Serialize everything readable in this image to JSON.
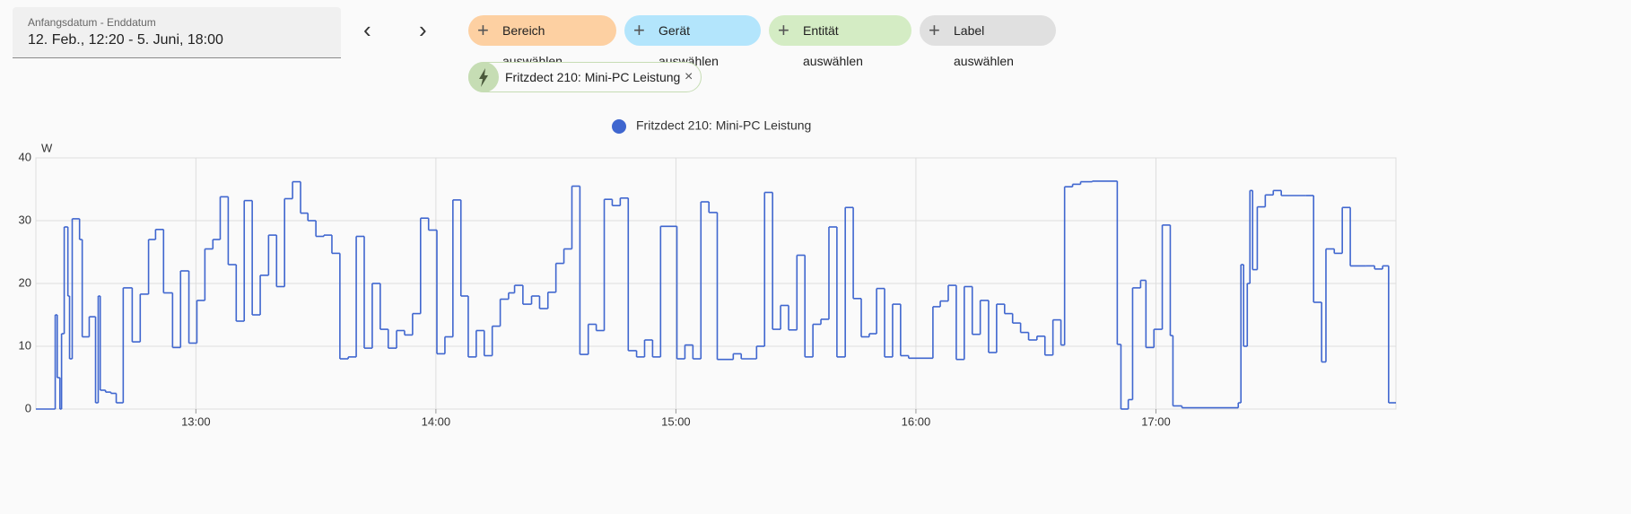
{
  "header": {
    "date_label": "Anfangsdatum - Enddatum",
    "date_value": "12. Feb., 12:20 - 5. Juni, 18:00",
    "buttons": [
      "Bereich auswählen",
      "Gerät auswählen",
      "Entität auswählen",
      "Label auswählen"
    ],
    "entity_chip": "Fritzdect 210: Mini-PC Leistung"
  },
  "chart_data": {
    "type": "line",
    "step": true,
    "y_unit": "W",
    "grid": true,
    "legend": "top",
    "xlim": [
      "12:20",
      "18:00"
    ],
    "xticks": [
      "13:00",
      "14:00",
      "15:00",
      "16:00",
      "17:00"
    ],
    "ylim": [
      0,
      40
    ],
    "yticks": [
      0,
      10,
      20,
      30,
      40
    ],
    "x": [
      "12:20:00",
      "12:24:50",
      "12:25:20",
      "12:26:00",
      "12:26:25",
      "12:27:05",
      "12:28:00",
      "12:28:25",
      "12:29:05",
      "12:30:55",
      "12:31:35",
      "12:33:20",
      "12:34:55",
      "12:35:35",
      "12:36:05",
      "12:37:25",
      "12:38:45",
      "12:40:05",
      "12:41:50",
      "12:44:05",
      "12:46:05",
      "12:48:10",
      "12:49:55",
      "12:51:55",
      "12:54:10",
      "12:56:10",
      "12:58:15",
      "13:00:15",
      "13:02:15",
      "13:04:15",
      "13:06:05",
      "13:08:05",
      "13:10:05",
      "13:12:05",
      "13:14:05",
      "13:16:05",
      "13:18:10",
      "13:20:10",
      "13:22:10",
      "13:24:10",
      "13:26:10",
      "13:28:00",
      "13:30:00",
      "13:32:00",
      "13:34:00",
      "13:36:00",
      "13:38:05",
      "13:40:05",
      "13:42:05",
      "13:44:05",
      "13:46:05",
      "13:48:05",
      "13:50:10",
      "13:52:10",
      "13:54:10",
      "13:56:10",
      "13:58:10",
      "14:00:15",
      "14:02:15",
      "14:04:15",
      "14:06:15",
      "14:08:05",
      "14:10:05",
      "14:12:05",
      "14:14:05",
      "14:16:05",
      "14:18:10",
      "14:19:40",
      "14:21:45",
      "14:23:55",
      "14:25:55",
      "14:28:00",
      "14:30:00",
      "14:32:00",
      "14:34:00",
      "14:36:00",
      "14:38:05",
      "14:40:05",
      "14:42:05",
      "14:44:05",
      "14:46:05",
      "14:48:05",
      "14:50:10",
      "14:52:10",
      "14:54:10",
      "14:56:10",
      "15:00:15",
      "15:02:15",
      "15:04:15",
      "15:06:15",
      "15:08:15",
      "15:10:20",
      "15:14:20",
      "15:16:20",
      "15:20:10",
      "15:22:10",
      "15:24:10",
      "15:26:10",
      "15:28:10",
      "15:30:15",
      "15:32:15",
      "15:34:15",
      "15:36:15",
      "15:38:15",
      "15:40:15",
      "15:42:20",
      "15:44:20",
      "15:46:20",
      "15:48:20",
      "15:50:10",
      "15:52:10",
      "15:54:10",
      "15:56:10",
      "15:58:10",
      "16:04:15",
      "16:06:05",
      "16:08:05",
      "16:10:05",
      "16:12:05",
      "16:14:05",
      "16:16:05",
      "16:18:10",
      "16:20:10",
      "16:22:10",
      "16:24:10",
      "16:26:10",
      "16:28:10",
      "16:30:15",
      "16:32:15",
      "16:34:15",
      "16:36:15",
      "16:37:10",
      "16:39:10",
      "16:41:10",
      "16:44:05",
      "16:50:20",
      "16:51:15",
      "16:53:05",
      "16:54:10",
      "16:56:10",
      "16:57:30",
      "16:59:30",
      "17:01:35",
      "17:03:35",
      "17:04:15",
      "17:06:30",
      "17:20:35",
      "17:21:15",
      "17:21:55",
      "17:22:50",
      "17:23:30",
      "17:24:10",
      "17:25:20",
      "17:27:20",
      "17:29:20",
      "17:31:20",
      "17:37:25",
      "17:39:25",
      "17:41:25",
      "17:42:30",
      "17:44:35",
      "17:46:35",
      "17:48:35",
      "17:52:35",
      "17:54:40",
      "17:56:40",
      "17:58:10"
    ],
    "series": [
      {
        "name": "Fritzdect 210: Mini-PC Leistung",
        "color": "#3f66cf",
        "values": [
          0,
          15,
          5,
          0,
          12,
          29,
          18,
          8,
          30.3,
          27,
          11.5,
          14.7,
          1,
          18,
          3,
          2.7,
          2.5,
          1,
          19.3,
          10.7,
          18.3,
          27,
          28.6,
          18.5,
          9.8,
          22,
          10.5,
          17.3,
          25.5,
          27,
          33.8,
          23,
          14,
          33.2,
          15,
          21.3,
          27.7,
          19.5,
          33.5,
          36.2,
          31.2,
          30,
          27.5,
          27.7,
          24.8,
          8,
          8.3,
          27.5,
          9.7,
          20,
          12.7,
          9.7,
          12.5,
          11.8,
          15.2,
          30.4,
          28.5,
          8.8,
          11.5,
          33.3,
          18,
          8.3,
          12.5,
          8.5,
          13.2,
          17.5,
          18.5,
          19.7,
          16.7,
          18,
          16,
          18.6,
          23.2,
          25.5,
          35.5,
          8.7,
          13.5,
          12.5,
          33.4,
          32.4,
          33.6,
          9.3,
          8.3,
          11,
          8.3,
          29.1,
          8,
          10.2,
          8,
          33,
          31.3,
          7.9,
          8.8,
          8,
          10,
          34.5,
          12.7,
          16.5,
          12.6,
          24.5,
          8.3,
          13.5,
          14.3,
          29,
          8.3,
          32.1,
          17.6,
          11.5,
          12,
          19.2,
          8.3,
          16.7,
          8.5,
          8.1,
          16.3,
          17.2,
          19.7,
          7.9,
          19.5,
          11.9,
          17.3,
          9,
          16.7,
          15.2,
          13.7,
          12.2,
          11,
          11.6,
          8.6,
          14.2,
          10.2,
          35.4,
          35.8,
          36.2,
          36.3,
          10.3,
          0,
          1.5,
          19.3,
          20.5,
          9.8,
          12.7,
          29.3,
          11.7,
          0.5,
          0.2,
          1,
          23,
          10,
          20,
          34.8,
          22.2,
          32.2,
          34.1,
          34.8,
          34,
          34,
          17,
          7.5,
          25.5,
          24.8,
          32.1,
          22.8,
          22.8,
          22.3,
          22.8,
          1
        ]
      }
    ]
  }
}
